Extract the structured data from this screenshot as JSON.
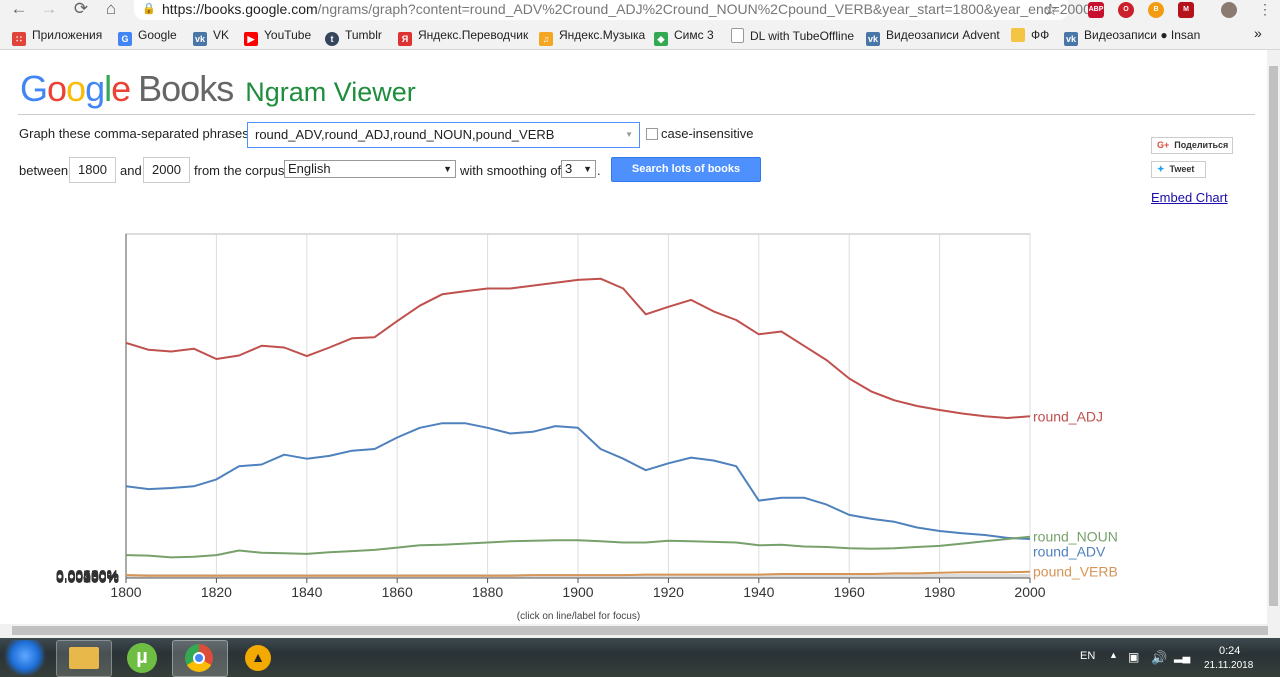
{
  "browser": {
    "url_host": "https://books.google.com",
    "url_rest": "/ngrams/graph?content=round_ADV%2Cround_ADJ%2Cround_NOUN%2Cpound_VERB&year_start=1800&year_end=2000...",
    "bookmarks": [
      {
        "label": "Приложения",
        "icon": "apps-grid-icon",
        "color": "#e0443a"
      },
      {
        "label": "Google",
        "icon": "google-icon",
        "color": "#4285f4"
      },
      {
        "label": "VK",
        "icon": "vk-icon",
        "color": "#4a76a8"
      },
      {
        "label": "YouTube",
        "icon": "youtube-icon",
        "color": "#ff0000"
      },
      {
        "label": "Tumblr",
        "icon": "tumblr-icon",
        "color": "#35465c"
      },
      {
        "label": "Яндекс.Переводчик",
        "icon": "translate-icon",
        "color": "#d33"
      },
      {
        "label": "Яндекс.Музыка",
        "icon": "music-icon",
        "color": "#f5a623"
      },
      {
        "label": "Симс 3",
        "icon": "plumbob-icon",
        "color": "#34a853"
      },
      {
        "label": "DL with TubeOffline",
        "icon": "document-icon",
        "color": "#999999"
      },
      {
        "label": "Видеозаписи Advent",
        "icon": "vk-icon",
        "color": "#4a76a8"
      },
      {
        "label": "ФФ",
        "icon": "folder-icon",
        "color": "#f4c542"
      },
      {
        "label": "Видеозаписи ● Insan",
        "icon": "vk-icon",
        "color": "#4a76a8"
      }
    ],
    "extensions": [
      {
        "label": "ABP",
        "color": "#c8102e"
      },
      {
        "label": "O",
        "color": "#cc1f2b"
      },
      {
        "label": "B",
        "color": "#f39c12"
      },
      {
        "label": "M",
        "color": "#b5121b"
      }
    ],
    "more_bookmarks": "»"
  },
  "header": {
    "logo_letters": [
      "G",
      "o",
      "o",
      "g",
      "l",
      "e"
    ],
    "books": "Books",
    "ngram": "Ngram Viewer"
  },
  "form": {
    "phrases_label": "Graph these comma-separated phrases:",
    "phrases_value": "round_ADV,round_ADJ,round_NOUN,pound_VERB",
    "case_label": "case-insensitive",
    "between_label": "between",
    "year_start": "1800",
    "and_label": "and",
    "year_end": "2000",
    "corpus_label": "from the corpus",
    "corpus_value": "English",
    "smoothing_label": "with smoothing of",
    "smoothing_value": "3",
    "period": ".",
    "search_button": "Search lots of books"
  },
  "sidebar": {
    "share_label": "Поделиться",
    "tweet_label": "Tweet",
    "embed_label": "Embed Chart"
  },
  "chart_hint": "(click on line/label for focus)",
  "chart_data": {
    "type": "line",
    "xlabel": "",
    "ylabel": "",
    "xlim": [
      1800,
      2000
    ],
    "ylim": [
      0,
      0.006
    ],
    "x_ticks": [
      "1800",
      "1820",
      "1840",
      "1860",
      "1880",
      "1900",
      "1920",
      "1940",
      "1960",
      "1980",
      "2000"
    ],
    "y_ticks": [
      "0.00000%",
      "0.00050%",
      "0.00100%",
      "0.00150%",
      "0.00200%",
      "0.00250%",
      "0.00300%",
      "0.00350%",
      "0.00400%",
      "0.00450%",
      "0.00500%",
      "0.00550%",
      "0.00600%"
    ],
    "grid": true,
    "x": [
      1800,
      1805,
      1810,
      1815,
      1820,
      1825,
      1830,
      1835,
      1840,
      1845,
      1850,
      1855,
      1860,
      1865,
      1870,
      1875,
      1880,
      1885,
      1890,
      1895,
      1900,
      1905,
      1910,
      1915,
      1920,
      1925,
      1930,
      1935,
      1940,
      1945,
      1950,
      1955,
      1960,
      1965,
      1970,
      1975,
      1980,
      1985,
      1990,
      1995,
      2000
    ],
    "series": [
      {
        "name": "round_ADJ",
        "color": "#c0504d",
        "values": [
          0.0041,
          0.00398,
          0.00395,
          0.004,
          0.00382,
          0.00388,
          0.00405,
          0.00402,
          0.00387,
          0.00402,
          0.00418,
          0.0042,
          0.00448,
          0.00475,
          0.00495,
          0.005,
          0.00505,
          0.00505,
          0.0051,
          0.00515,
          0.0052,
          0.00522,
          0.00505,
          0.0046,
          0.00473,
          0.00485,
          0.00465,
          0.0045,
          0.00425,
          0.0043,
          0.00405,
          0.0038,
          0.00348,
          0.00325,
          0.0031,
          0.003,
          0.00293,
          0.00287,
          0.00282,
          0.00279,
          0.00282
        ]
      },
      {
        "name": "round_ADV",
        "color": "#4f81bd",
        "values": [
          0.0016,
          0.00155,
          0.00157,
          0.0016,
          0.00172,
          0.00195,
          0.00198,
          0.00215,
          0.00208,
          0.00213,
          0.00222,
          0.00225,
          0.00245,
          0.00262,
          0.0027,
          0.0027,
          0.00262,
          0.00252,
          0.00255,
          0.00265,
          0.00262,
          0.00225,
          0.00208,
          0.00188,
          0.002,
          0.0021,
          0.00205,
          0.00195,
          0.00135,
          0.0014,
          0.0014,
          0.00128,
          0.0011,
          0.00103,
          0.00098,
          0.00088,
          0.00082,
          0.00078,
          0.00075,
          0.0007,
          0.00068
        ]
      },
      {
        "name": "round_NOUN",
        "color": "#77a16b",
        "values": [
          0.0004,
          0.00039,
          0.00036,
          0.00037,
          0.0004,
          0.00048,
          0.00044,
          0.00043,
          0.00042,
          0.00045,
          0.00047,
          0.00049,
          0.00053,
          0.00057,
          0.00058,
          0.0006,
          0.00062,
          0.00064,
          0.00065,
          0.00066,
          0.00066,
          0.00064,
          0.00062,
          0.00062,
          0.00065,
          0.00064,
          0.00063,
          0.00062,
          0.00057,
          0.00058,
          0.00055,
          0.00054,
          0.00052,
          0.00051,
          0.00052,
          0.00054,
          0.00056,
          0.0006,
          0.00064,
          0.00068,
          0.00072
        ]
      },
      {
        "name": "pound_VERB",
        "color": "#d69556",
        "values": [
          5e-05,
          4e-05,
          4e-05,
          4e-05,
          4e-05,
          4e-05,
          4e-05,
          4e-05,
          4e-05,
          4e-05,
          4e-05,
          4e-05,
          4e-05,
          4e-05,
          4e-05,
          4e-05,
          4e-05,
          4e-05,
          5e-05,
          5e-05,
          5e-05,
          5e-05,
          5e-05,
          6e-05,
          6e-05,
          6e-05,
          6e-05,
          6e-05,
          6e-05,
          7e-05,
          7e-05,
          7e-05,
          7e-05,
          7e-05,
          8e-05,
          8e-05,
          9e-05,
          0.0001,
          0.0001,
          0.0001,
          0.00011
        ]
      }
    ]
  },
  "taskbar": {
    "apps": [
      {
        "label": "windows-start-icon",
        "color": "#1e6fd9"
      },
      {
        "label": "folder-app-icon",
        "color": "#e8b84a"
      },
      {
        "label": "utorrent-app-icon",
        "color": "#6fbe44"
      },
      {
        "label": "chrome-app-icon",
        "color": "#dd4b39"
      },
      {
        "label": "aimp-app-icon",
        "color": "#f2a900"
      }
    ],
    "lang": "EN",
    "time": "0:24",
    "date": "21.11.2018"
  }
}
